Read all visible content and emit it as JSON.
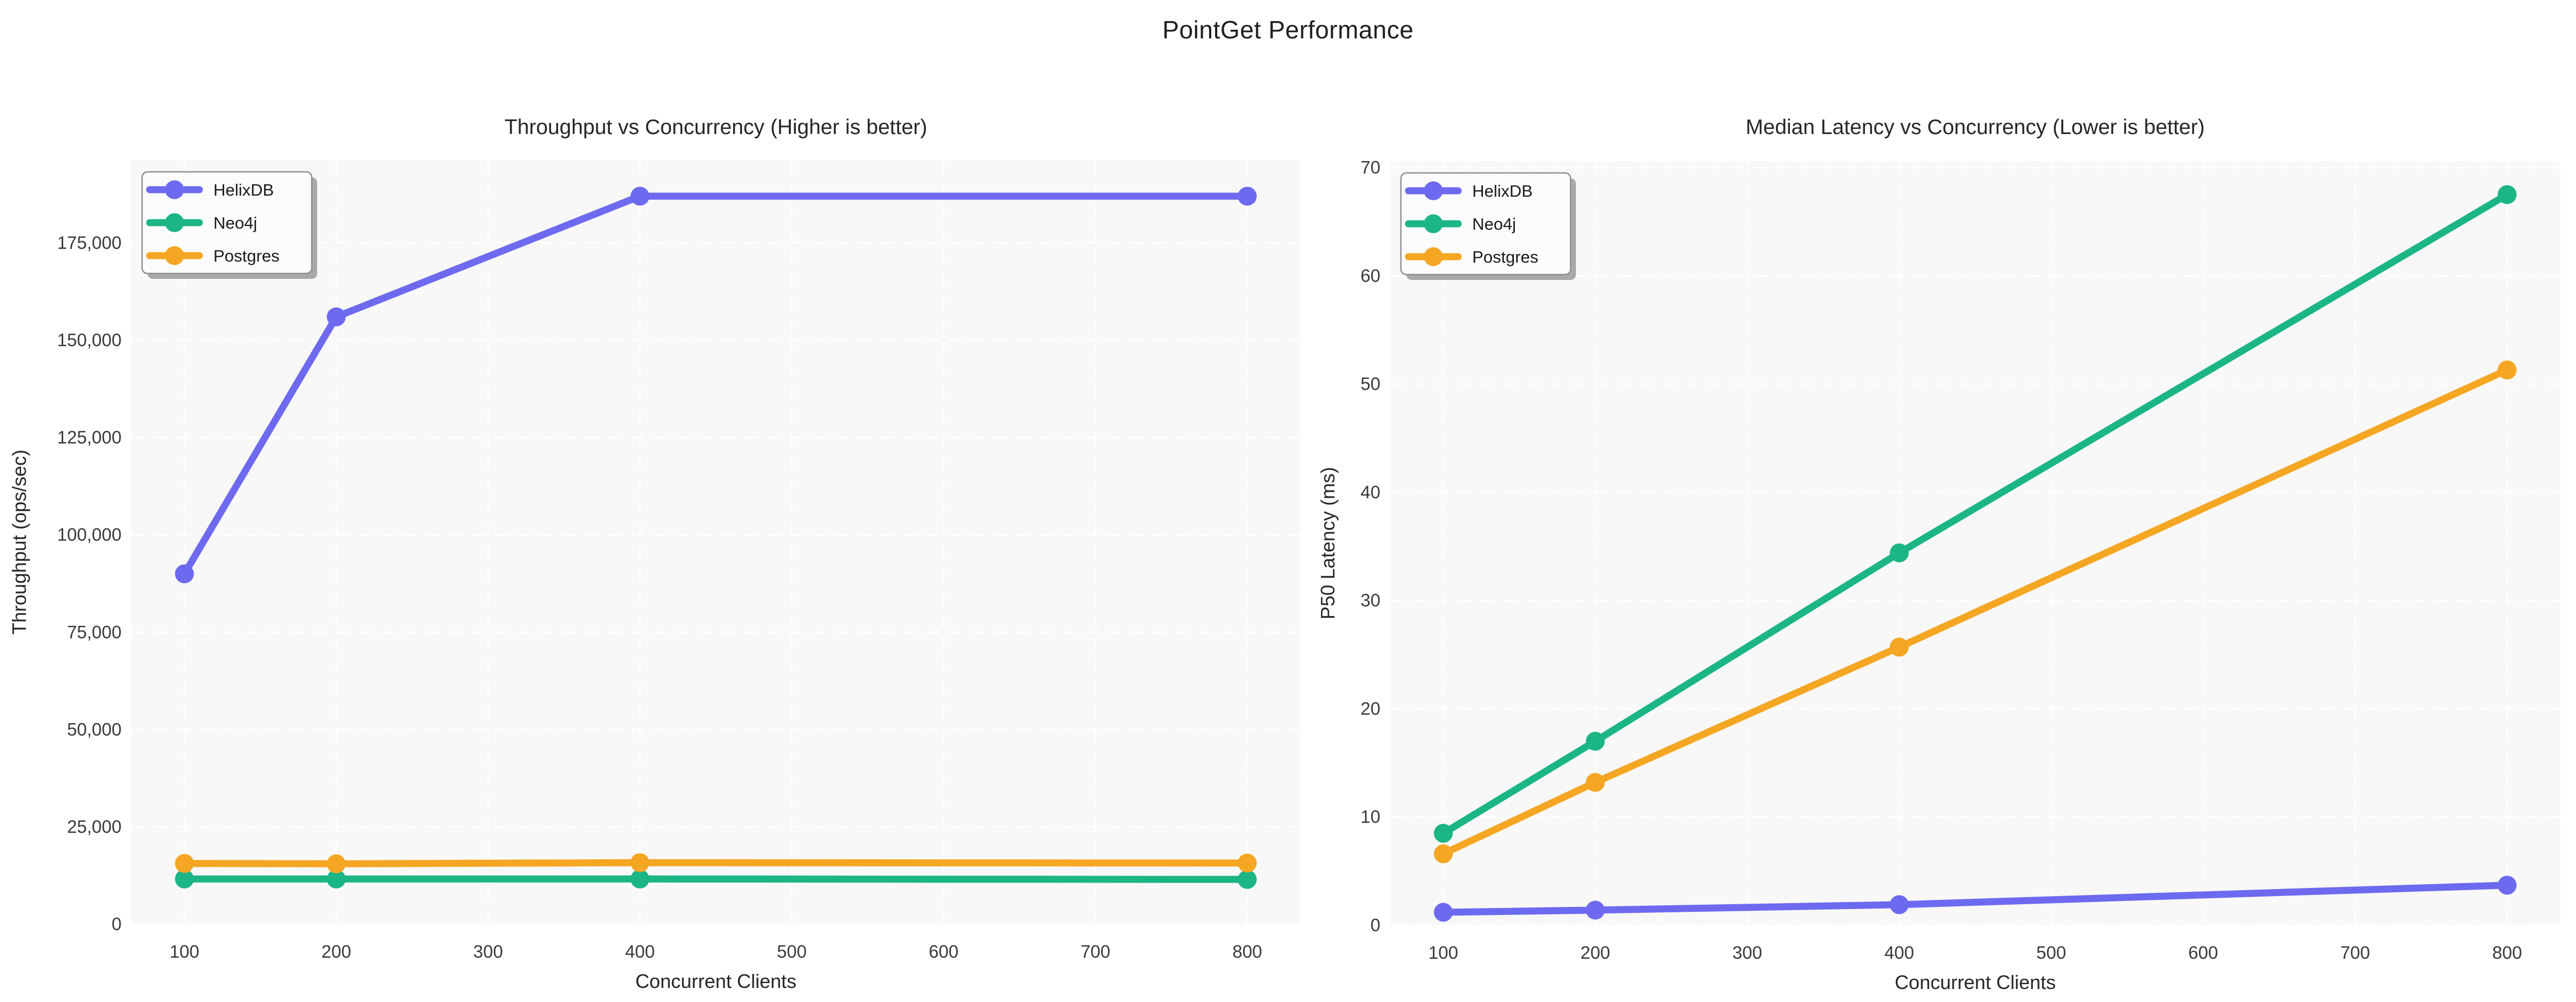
{
  "page": {
    "title": "PointGet Performance"
  },
  "colors": {
    "plot_bg": "#f8f8f8",
    "grid": "#ffffff",
    "tick_text": "#3a3a3a",
    "title_text": "#262626",
    "legend_bg": "#fcfcfc",
    "legend_border": "#8f8f8f",
    "legend_shadow": "#a9a9a9"
  },
  "chart_data": [
    {
      "type": "line",
      "title": "Throughput vs Concurrency (Higher is better)",
      "xlabel": "Concurrent Clients",
      "ylabel": "Throughput (ops/sec)",
      "x": [
        100,
        200,
        400,
        800
      ],
      "xticks": [
        100,
        200,
        300,
        400,
        500,
        600,
        700,
        800
      ],
      "yticks": [
        0,
        25000,
        50000,
        75000,
        100000,
        125000,
        150000,
        175000
      ],
      "xlim": [
        65,
        835
      ],
      "ylim": [
        0,
        196300
      ],
      "grid": "dashed",
      "legend_position": "top-left",
      "series": [
        {
          "name": "HelixDB",
          "color": "#6d6af0",
          "values": [
            90000,
            156000,
            187000,
            187000
          ]
        },
        {
          "name": "Neo4j",
          "color": "#1cb585",
          "values": [
            11600,
            11600,
            11600,
            11500
          ]
        },
        {
          "name": "Postgres",
          "color": "#f5a623",
          "values": [
            15600,
            15500,
            15800,
            15700
          ]
        }
      ]
    },
    {
      "type": "line",
      "title": "Median Latency vs Concurrency (Lower is better)",
      "xlabel": "Concurrent Clients",
      "ylabel": "P50 Latency (ms)",
      "x": [
        100,
        200,
        400,
        800
      ],
      "xticks": [
        100,
        200,
        300,
        400,
        500,
        600,
        700,
        800
      ],
      "yticks": [
        0,
        10,
        20,
        30,
        40,
        50,
        60,
        70
      ],
      "xlim": [
        65,
        835
      ],
      "ylim": [
        0,
        70.6
      ],
      "grid": "dashed",
      "legend_position": "top-left",
      "series": [
        {
          "name": "HelixDB",
          "color": "#6d6af0",
          "values": [
            1.2,
            1.4,
            1.9,
            3.7
          ]
        },
        {
          "name": "Neo4j",
          "color": "#1cb585",
          "values": [
            8.5,
            17.0,
            34.4,
            67.5
          ]
        },
        {
          "name": "Postgres",
          "color": "#f5a623",
          "values": [
            6.6,
            13.2,
            25.7,
            51.3
          ]
        }
      ]
    }
  ]
}
